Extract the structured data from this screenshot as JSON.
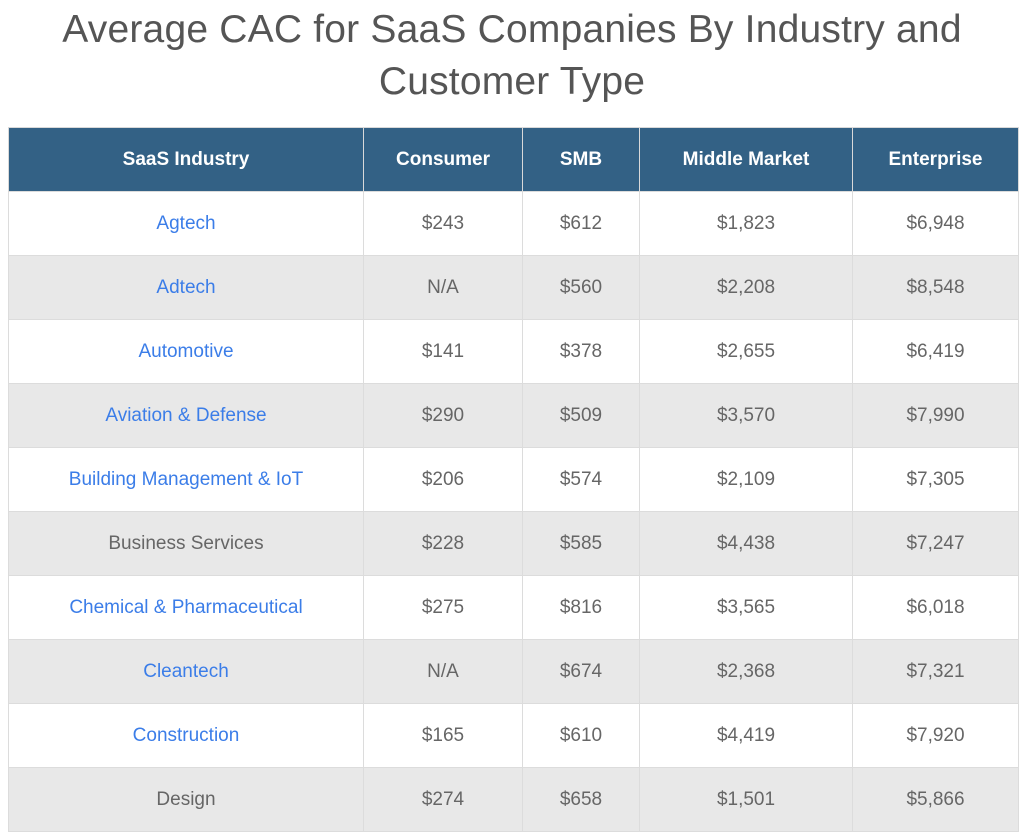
{
  "title": "Average CAC for SaaS Companies By Industry and Customer Type",
  "colors": {
    "header_bg": "#336185",
    "header_text": "#ffffff",
    "link": "#3b7de8",
    "row_alt": "#e8e8e8"
  },
  "table": {
    "headers": [
      "SaaS Industry",
      "Consumer",
      "SMB",
      "Middle Market",
      "Enterprise"
    ],
    "rows": [
      {
        "industry": "Agtech",
        "is_link": true,
        "consumer": "$243",
        "smb": "$612",
        "middle_market": "$1,823",
        "enterprise": "$6,948"
      },
      {
        "industry": "Adtech",
        "is_link": true,
        "consumer": "N/A",
        "smb": "$560",
        "middle_market": "$2,208",
        "enterprise": "$8,548"
      },
      {
        "industry": "Automotive",
        "is_link": true,
        "consumer": "$141",
        "smb": "$378",
        "middle_market": "$2,655",
        "enterprise": "$6,419"
      },
      {
        "industry": "Aviation & Defense",
        "is_link": true,
        "consumer": "$290",
        "smb": "$509",
        "middle_market": "$3,570",
        "enterprise": "$7,990"
      },
      {
        "industry": "Building Management & IoT",
        "is_link": true,
        "consumer": "$206",
        "smb": "$574",
        "middle_market": "$2,109",
        "enterprise": "$7,305"
      },
      {
        "industry": "Business Services",
        "is_link": false,
        "consumer": "$228",
        "smb": "$585",
        "middle_market": "$4,438",
        "enterprise": "$7,247"
      },
      {
        "industry": "Chemical & Pharmaceutical",
        "is_link": true,
        "consumer": "$275",
        "smb": "$816",
        "middle_market": "$3,565",
        "enterprise": "$6,018"
      },
      {
        "industry": "Cleantech",
        "is_link": true,
        "consumer": "N/A",
        "smb": "$674",
        "middle_market": "$2,368",
        "enterprise": "$7,321"
      },
      {
        "industry": "Construction",
        "is_link": true,
        "consumer": "$165",
        "smb": "$610",
        "middle_market": "$4,419",
        "enterprise": "$7,920"
      },
      {
        "industry": "Design",
        "is_link": false,
        "consumer": "$274",
        "smb": "$658",
        "middle_market": "$1,501",
        "enterprise": "$5,866"
      }
    ]
  }
}
